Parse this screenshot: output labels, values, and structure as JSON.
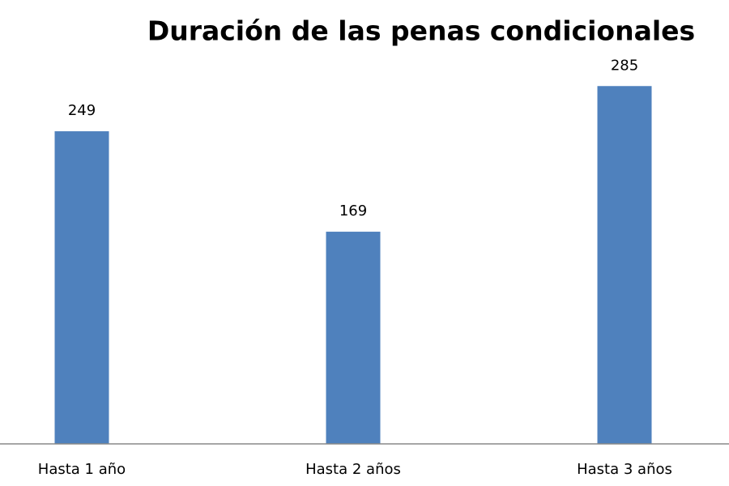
{
  "chart_data": {
    "type": "bar",
    "title": "Duración de las penas condicionales",
    "categories": [
      "Hasta 1 año",
      "Hasta 2 años",
      "Hasta 3 años"
    ],
    "values": [
      249,
      169,
      285
    ],
    "color": "#4f81bd",
    "ylim": [
      0,
      300
    ],
    "show_value_labels": true
  }
}
